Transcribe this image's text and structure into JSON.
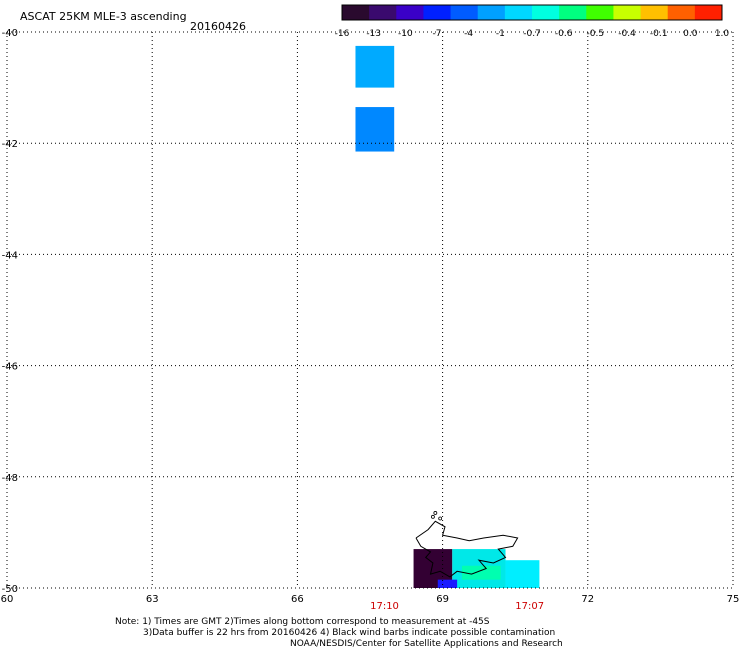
{
  "header": {
    "title": "ASCAT 25KM MLE-3 ascending",
    "date": "20160426"
  },
  "colorbar": {
    "labels": [
      "-16",
      "-13",
      "-10",
      "-7",
      "-4",
      "-1",
      "-0.7",
      "-0.6",
      "-0.5",
      "-0.4",
      "-0.1",
      "0.0",
      "1.0"
    ],
    "colors": [
      "#2a0a2e",
      "#3a0a6e",
      "#3a00c8",
      "#0020ff",
      "#005cff",
      "#00a0ff",
      "#00d8ff",
      "#00ffe0",
      "#00ff80",
      "#40ff00",
      "#c8ff00",
      "#ffc000",
      "#ff6000",
      "#ff2000"
    ]
  },
  "map": {
    "lat_labels": [
      "-40",
      "-42",
      "-44",
      "-46",
      "-48",
      "-50"
    ],
    "lon_labels": [
      "60",
      "63",
      "66",
      "69",
      "72",
      "75"
    ],
    "lat_range": [
      -50,
      -40
    ],
    "lon_range": [
      60,
      75
    ],
    "time_labels": [
      {
        "text": "17:10",
        "lon": 67.8
      },
      {
        "text": "17:07",
        "lon": 70.8
      }
    ],
    "time_color": "#cc0000",
    "cells": [
      {
        "lon0": 67.2,
        "lon1": 68.0,
        "lat0": -40.25,
        "lat1": -41.0,
        "color": "#00aaff"
      },
      {
        "lon0": 67.2,
        "lon1": 68.0,
        "lat0": -41.35,
        "lat1": -42.15,
        "color": "#0088ff"
      },
      {
        "lon0": 68.4,
        "lon1": 69.2,
        "lat0": -49.3,
        "lat1": -50.0,
        "color": "#330033"
      },
      {
        "lon0": 69.2,
        "lon1": 70.3,
        "lat0": -49.3,
        "lat1": -50.0,
        "color": "#00e8e8"
      },
      {
        "lon0": 70.3,
        "lon1": 71.0,
        "lat0": -49.5,
        "lat1": -50.0,
        "color": "#00eeff"
      },
      {
        "lon0": 69.4,
        "lon1": 70.2,
        "lat0": -49.6,
        "lat1": -49.85,
        "color": "#00ffb0"
      },
      {
        "lon0": 68.9,
        "lon1": 69.3,
        "lat0": -49.85,
        "lat1": -50.0,
        "color": "#1a1aff"
      }
    ]
  },
  "footer": {
    "note1": "Note: 1) Times are GMT 2)Times along bottom correspond to measurement at -45S",
    "note2": "3)Data buffer is 22 hrs from 20160426 4) Black wind barbs indicate possible contamination",
    "credit": "NOAA/NESDIS/Center for Satellite Applications and Research"
  }
}
